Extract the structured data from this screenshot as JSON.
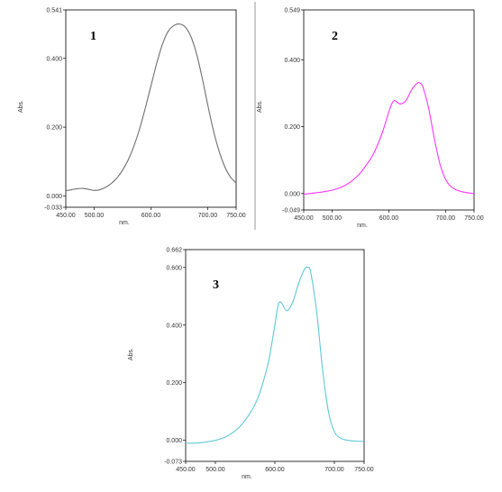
{
  "chart_data": [
    {
      "type": "line",
      "panel_label": "1",
      "xlabel": "nm.",
      "ylabel": "Abs.",
      "xlim": [
        450,
        750
      ],
      "ylim": [
        -0.033,
        0.541
      ],
      "x_ticks": [
        "450.00",
        "500.00",
        "600.00",
        "700.00",
        "750.00"
      ],
      "y_ticks": [
        "0.541",
        "0.400",
        "0.200",
        "0.000",
        "-0.033"
      ],
      "color": "#707070",
      "series": [
        {
          "x": [
            450,
            460,
            470,
            480,
            490,
            500,
            510,
            520,
            530,
            540,
            550,
            560,
            570,
            580,
            590,
            600,
            610,
            620,
            630,
            640,
            650,
            660,
            670,
            680,
            690,
            700,
            710,
            720,
            730,
            740,
            750
          ],
          "y": [
            0.015,
            0.018,
            0.021,
            0.022,
            0.019,
            0.016,
            0.018,
            0.025,
            0.036,
            0.052,
            0.075,
            0.105,
            0.145,
            0.195,
            0.255,
            0.32,
            0.385,
            0.44,
            0.478,
            0.495,
            0.5,
            0.492,
            0.465,
            0.415,
            0.345,
            0.265,
            0.19,
            0.13,
            0.085,
            0.055,
            0.038
          ]
        }
      ]
    },
    {
      "type": "line",
      "panel_label": "2",
      "xlabel": "nm.",
      "ylabel": "Abs.",
      "xlim": [
        450,
        750
      ],
      "ylim": [
        -0.049,
        0.549
      ],
      "x_ticks": [
        "450.00",
        "500.00",
        "600.00",
        "700.00",
        "750.00"
      ],
      "y_ticks": [
        "0.549",
        "0.400",
        "0.200",
        "0.000",
        "-0.049"
      ],
      "color": "#ff33ff",
      "series": [
        {
          "x": [
            450,
            460,
            470,
            480,
            490,
            500,
            510,
            520,
            530,
            540,
            550,
            560,
            570,
            580,
            590,
            600,
            605,
            610,
            620,
            630,
            640,
            650,
            655,
            660,
            670,
            680,
            690,
            700,
            710,
            720,
            730,
            740,
            750
          ],
          "y": [
            -0.002,
            0.0,
            0.002,
            0.004,
            0.007,
            0.01,
            0.015,
            0.022,
            0.032,
            0.045,
            0.062,
            0.085,
            0.11,
            0.145,
            0.19,
            0.245,
            0.268,
            0.278,
            0.268,
            0.278,
            0.31,
            0.33,
            0.33,
            0.318,
            0.255,
            0.165,
            0.088,
            0.042,
            0.02,
            0.01,
            0.005,
            0.002,
            0.0
          ]
        }
      ]
    },
    {
      "type": "line",
      "panel_label": "3",
      "xlabel": "nm.",
      "ylabel": "Abs.",
      "xlim": [
        450,
        750
      ],
      "ylim": [
        -0.073,
        0.662
      ],
      "x_ticks": [
        "450.00",
        "500.00",
        "600.00",
        "700.00",
        "750.00"
      ],
      "y_ticks": [
        "0.662",
        "0.600",
        "0.400",
        "0.200",
        "0.000",
        "-0.073"
      ],
      "color": "#5fc8d6",
      "series": [
        {
          "x": [
            450,
            460,
            470,
            480,
            490,
            500,
            510,
            520,
            530,
            540,
            550,
            560,
            570,
            580,
            590,
            600,
            605,
            610,
            620,
            630,
            640,
            650,
            655,
            660,
            670,
            680,
            690,
            700,
            710,
            720,
            730,
            740,
            750
          ],
          "y": [
            -0.01,
            -0.01,
            -0.009,
            -0.007,
            -0.004,
            0.0,
            0.006,
            0.015,
            0.028,
            0.045,
            0.07,
            0.1,
            0.14,
            0.2,
            0.28,
            0.4,
            0.465,
            0.48,
            0.45,
            0.48,
            0.545,
            0.595,
            0.6,
            0.585,
            0.45,
            0.25,
            0.1,
            0.03,
            0.008,
            0.001,
            -0.002,
            -0.003,
            -0.004
          ]
        }
      ]
    }
  ]
}
